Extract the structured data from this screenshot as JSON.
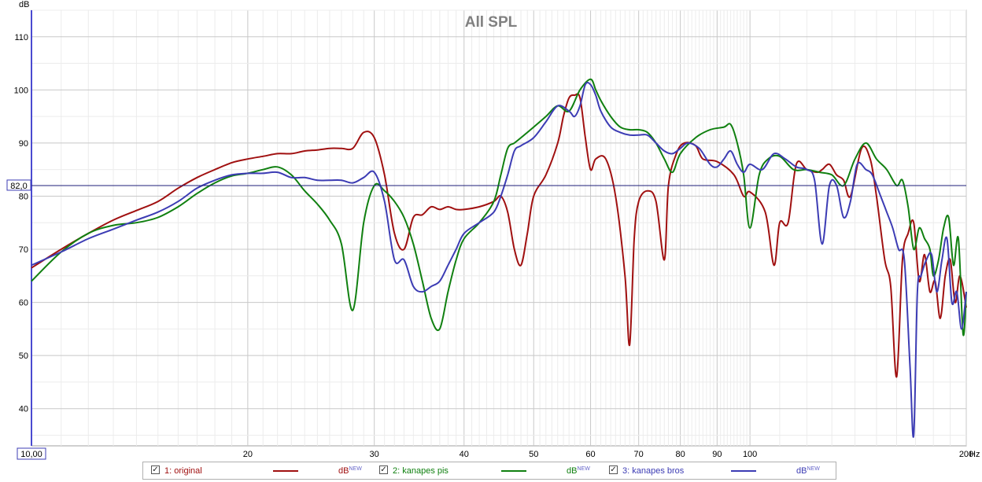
{
  "chart_data": {
    "type": "line",
    "title": "All SPL",
    "ylabel": "dB",
    "xunit": "Hz",
    "xscale": "log",
    "xlim": [
      10,
      200
    ],
    "ylim": [
      33,
      115
    ],
    "x_left_readout": "10,00",
    "x_ticks": [
      20,
      30,
      40,
      50,
      60,
      70,
      80,
      90,
      100,
      200
    ],
    "x_tick_labels": [
      "20",
      "30",
      "40",
      "50",
      "60",
      "70",
      "80",
      "90",
      "100",
      "200"
    ],
    "y_ticks": [
      40,
      50,
      60,
      70,
      80,
      90,
      100,
      110
    ],
    "reference_level": 82.0,
    "reference_label": "82,0",
    "grid": true,
    "legend_placement": "bottom",
    "series": [
      {
        "name": "1: original",
        "unit": "dB",
        "color": "#a01010",
        "points": [
          [
            10,
            66.5
          ],
          [
            11,
            70
          ],
          [
            12,
            73
          ],
          [
            13,
            75.5
          ],
          [
            14,
            77.3
          ],
          [
            15,
            79
          ],
          [
            16,
            81.5
          ],
          [
            17,
            83.5
          ],
          [
            18,
            85
          ],
          [
            19,
            86.3
          ],
          [
            20,
            87
          ],
          [
            21,
            87.5
          ],
          [
            22,
            88
          ],
          [
            23,
            88
          ],
          [
            24,
            88.5
          ],
          [
            25,
            88.7
          ],
          [
            26,
            89
          ],
          [
            27,
            89
          ],
          [
            28,
            89
          ],
          [
            29,
            92
          ],
          [
            30,
            91
          ],
          [
            31,
            84
          ],
          [
            32,
            73
          ],
          [
            33,
            70
          ],
          [
            34,
            76
          ],
          [
            35,
            76.5
          ],
          [
            36,
            78
          ],
          [
            37,
            77.5
          ],
          [
            38,
            78
          ],
          [
            39,
            77.5
          ],
          [
            40,
            77.5
          ],
          [
            42,
            78
          ],
          [
            44,
            79
          ],
          [
            45,
            80
          ],
          [
            46,
            77
          ],
          [
            47,
            70
          ],
          [
            48,
            67
          ],
          [
            49,
            73
          ],
          [
            50,
            80
          ],
          [
            52,
            84
          ],
          [
            54,
            90
          ],
          [
            55,
            95
          ],
          [
            56,
            98.5
          ],
          [
            57,
            99
          ],
          [
            58,
            98.5
          ],
          [
            59,
            91
          ],
          [
            60,
            85
          ],
          [
            61,
            87
          ],
          [
            63,
            87
          ],
          [
            65,
            80
          ],
          [
            67,
            65
          ],
          [
            68,
            52
          ],
          [
            69,
            72
          ],
          [
            70,
            79
          ],
          [
            72,
            81
          ],
          [
            74,
            79
          ],
          [
            76,
            68
          ],
          [
            77,
            82
          ],
          [
            79,
            88
          ],
          [
            81,
            90
          ],
          [
            84,
            89.5
          ],
          [
            86,
            87
          ],
          [
            90,
            86.5
          ],
          [
            95,
            84
          ],
          [
            98,
            80
          ],
          [
            100,
            80.8
          ],
          [
            105,
            77
          ],
          [
            108,
            67
          ],
          [
            110,
            75
          ],
          [
            113,
            75
          ],
          [
            116,
            86
          ],
          [
            120,
            85
          ],
          [
            124,
            84.5
          ],
          [
            126,
            85
          ],
          [
            129,
            86
          ],
          [
            132,
            84
          ],
          [
            135,
            83
          ],
          [
            138,
            80
          ],
          [
            143,
            89
          ],
          [
            147,
            87
          ],
          [
            150,
            80
          ],
          [
            154,
            68
          ],
          [
            157,
            63
          ],
          [
            160,
            46
          ],
          [
            163,
            68
          ],
          [
            166,
            73
          ],
          [
            169,
            75
          ],
          [
            172,
            64
          ],
          [
            175,
            69
          ],
          [
            178,
            62
          ],
          [
            181,
            64
          ],
          [
            184,
            57
          ],
          [
            187,
            65
          ],
          [
            190,
            68
          ],
          [
            193,
            60
          ],
          [
            196,
            65
          ],
          [
            200,
            59
          ]
        ]
      },
      {
        "name": "2: kanapes pis",
        "unit": "dB",
        "color": "#108010",
        "points": [
          [
            10,
            64
          ],
          [
            11,
            69.5
          ],
          [
            12,
            73
          ],
          [
            13,
            74.5
          ],
          [
            14,
            75
          ],
          [
            15,
            76
          ],
          [
            16,
            78
          ],
          [
            17,
            80.5
          ],
          [
            18,
            82.5
          ],
          [
            19,
            83.8
          ],
          [
            20,
            84.3
          ],
          [
            21,
            85
          ],
          [
            22,
            85.5
          ],
          [
            23,
            84
          ],
          [
            24,
            81
          ],
          [
            25,
            78.5
          ],
          [
            26,
            75.5
          ],
          [
            27,
            71
          ],
          [
            28,
            58.5
          ],
          [
            29,
            75
          ],
          [
            30,
            82
          ],
          [
            31,
            81
          ],
          [
            32,
            79
          ],
          [
            33,
            76
          ],
          [
            34,
            71
          ],
          [
            35,
            64
          ],
          [
            36,
            57
          ],
          [
            37,
            55
          ],
          [
            38,
            62
          ],
          [
            39,
            68
          ],
          [
            40,
            72
          ],
          [
            42,
            75
          ],
          [
            44,
            79
          ],
          [
            45,
            84
          ],
          [
            46,
            89
          ],
          [
            47,
            90
          ],
          [
            48,
            91
          ],
          [
            50,
            93
          ],
          [
            52,
            95
          ],
          [
            54,
            97
          ],
          [
            56,
            96
          ],
          [
            58,
            100
          ],
          [
            60,
            102
          ],
          [
            61,
            100
          ],
          [
            62,
            98
          ],
          [
            64,
            95
          ],
          [
            66,
            93
          ],
          [
            68,
            92.5
          ],
          [
            70,
            92.5
          ],
          [
            72,
            92
          ],
          [
            74,
            90
          ],
          [
            76,
            87
          ],
          [
            78,
            84.5
          ],
          [
            80,
            88
          ],
          [
            84,
            91
          ],
          [
            88,
            92.5
          ],
          [
            92,
            93
          ],
          [
            94,
            93.5
          ],
          [
            96,
            90
          ],
          [
            98,
            84
          ],
          [
            100,
            74
          ],
          [
            103,
            84
          ],
          [
            106,
            87
          ],
          [
            110,
            87.5
          ],
          [
            115,
            85
          ],
          [
            120,
            85
          ],
          [
            125,
            84.5
          ],
          [
            130,
            84
          ],
          [
            135,
            82
          ],
          [
            140,
            87
          ],
          [
            145,
            90
          ],
          [
            150,
            87
          ],
          [
            155,
            85
          ],
          [
            160,
            82
          ],
          [
            163,
            83
          ],
          [
            166,
            78
          ],
          [
            169,
            70
          ],
          [
            172,
            74
          ],
          [
            175,
            72
          ],
          [
            178,
            70
          ],
          [
            180,
            65
          ],
          [
            183,
            68
          ],
          [
            186,
            74
          ],
          [
            189,
            76
          ],
          [
            192,
            67
          ],
          [
            195,
            72
          ],
          [
            198,
            54
          ],
          [
            200,
            62
          ]
        ]
      },
      {
        "name": "3: kanapes bros",
        "unit": "dB",
        "color": "#3c3cb4",
        "points": [
          [
            10,
            67
          ],
          [
            11,
            69.5
          ],
          [
            12,
            72
          ],
          [
            13,
            73.8
          ],
          [
            14,
            75.5
          ],
          [
            15,
            77
          ],
          [
            16,
            79
          ],
          [
            17,
            81.5
          ],
          [
            18,
            83
          ],
          [
            19,
            84
          ],
          [
            20,
            84.3
          ],
          [
            21,
            84.3
          ],
          [
            22,
            84.5
          ],
          [
            23,
            83.5
          ],
          [
            24,
            83.5
          ],
          [
            25,
            83
          ],
          [
            26,
            83
          ],
          [
            27,
            83
          ],
          [
            28,
            82.5
          ],
          [
            29,
            83.5
          ],
          [
            30,
            84.5
          ],
          [
            31,
            79
          ],
          [
            32,
            68
          ],
          [
            33,
            68
          ],
          [
            34,
            63
          ],
          [
            35,
            62
          ],
          [
            36,
            63
          ],
          [
            37,
            64
          ],
          [
            38,
            67
          ],
          [
            39,
            70
          ],
          [
            40,
            73
          ],
          [
            42,
            75
          ],
          [
            44,
            77
          ],
          [
            45,
            80
          ],
          [
            46,
            84
          ],
          [
            47,
            88.5
          ],
          [
            48,
            89.5
          ],
          [
            50,
            91
          ],
          [
            52,
            94
          ],
          [
            54,
            97
          ],
          [
            56,
            96
          ],
          [
            57,
            95
          ],
          [
            58,
            97
          ],
          [
            59,
            101
          ],
          [
            60,
            101
          ],
          [
            61,
            99
          ],
          [
            62,
            96
          ],
          [
            64,
            93
          ],
          [
            66,
            92
          ],
          [
            68,
            91.5
          ],
          [
            70,
            91.5
          ],
          [
            72,
            91.5
          ],
          [
            74,
            90
          ],
          [
            76,
            88.5
          ],
          [
            78,
            88
          ],
          [
            80,
            89
          ],
          [
            82,
            90
          ],
          [
            85,
            89
          ],
          [
            88,
            86
          ],
          [
            90,
            85.5
          ],
          [
            92,
            87
          ],
          [
            94,
            88.5
          ],
          [
            96,
            86
          ],
          [
            98,
            84.5
          ],
          [
            100,
            86
          ],
          [
            104,
            85
          ],
          [
            108,
            88
          ],
          [
            112,
            87
          ],
          [
            116,
            85.5
          ],
          [
            120,
            85
          ],
          [
            123,
            83
          ],
          [
            126,
            71
          ],
          [
            129,
            82
          ],
          [
            132,
            82
          ],
          [
            135,
            76
          ],
          [
            138,
            79
          ],
          [
            141,
            86
          ],
          [
            145,
            85
          ],
          [
            148,
            84
          ],
          [
            152,
            80
          ],
          [
            155,
            77
          ],
          [
            158,
            74
          ],
          [
            161,
            70
          ],
          [
            164,
            68
          ],
          [
            167,
            48
          ],
          [
            169,
            35
          ],
          [
            171,
            62
          ],
          [
            173,
            65
          ],
          [
            176,
            68
          ],
          [
            179,
            69
          ],
          [
            182,
            62
          ],
          [
            185,
            68
          ],
          [
            188,
            72
          ],
          [
            191,
            60
          ],
          [
            194,
            62
          ],
          [
            197,
            55
          ],
          [
            200,
            62
          ]
        ]
      }
    ]
  }
}
